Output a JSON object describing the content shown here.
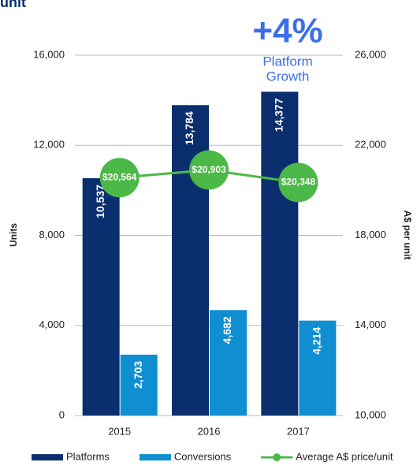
{
  "chart_data": {
    "type": "bar",
    "title": "unit",
    "annotations": [
      "+4%",
      "Platform",
      "Growth"
    ],
    "y_label": "Units",
    "y2_label": "A$ per unit",
    "categories": [
      "2015",
      "2016",
      "2017"
    ],
    "series": [
      {
        "name": "Platforms",
        "type": "bar",
        "color": "#0b2f6e",
        "values": [
          10537,
          13784,
          14377
        ],
        "value_labels": [
          "10,537",
          "13,784",
          "14,377"
        ]
      },
      {
        "name": "Conversions",
        "type": "bar",
        "color": "#0f8fd1",
        "values": [
          2703,
          4682,
          4214
        ],
        "value_labels": [
          "2,703",
          "4,682",
          "4,214"
        ]
      },
      {
        "name": "Average A$ price/unit",
        "type": "line",
        "axis": "y2",
        "color": "#4cb848",
        "values": [
          20564,
          20903,
          20348
        ],
        "value_labels": [
          "$20,564",
          "$20,903",
          "$20,348"
        ]
      }
    ],
    "ylim": [
      0,
      16000
    ],
    "yticks": [
      0,
      {
        "value": 4000,
        "label": "4,000"
      },
      {
        "value": 8000,
        "label": "8,000"
      },
      {
        "value": 12000,
        "label": "12,000"
      },
      {
        "value": 16000,
        "label": "16,000"
      }
    ],
    "y2lim": [
      10000,
      26000
    ],
    "y2ticks": [
      {
        "value": 10000,
        "label": "10,000"
      },
      {
        "value": 14000,
        "label": "14,000"
      },
      {
        "value": 18000,
        "label": "18,000"
      },
      {
        "value": 22000,
        "label": "22,000"
      },
      {
        "value": 26000,
        "label": "26,000"
      }
    ],
    "grid": true,
    "legend": "bottom"
  }
}
